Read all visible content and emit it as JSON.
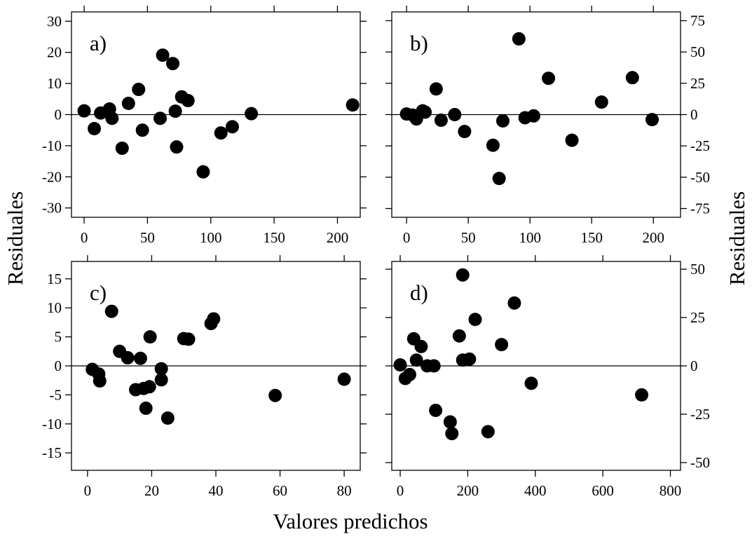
{
  "figure": {
    "xlabel": "Valores predichos",
    "ylabel_left": "Residuales",
    "ylabel_right": "Residuales"
  },
  "chart_data": [
    {
      "type": "scatter",
      "panel_label": "a)",
      "xlim": [
        -10,
        218
      ],
      "ylim": [
        -33,
        33
      ],
      "xticks": [
        0,
        50,
        100,
        150,
        200
      ],
      "yticks": [
        -30,
        -20,
        -10,
        0,
        10,
        20,
        30
      ],
      "y_axis_side": "left",
      "x_axis_side": "bottom",
      "reference_line_y": 0,
      "points": [
        {
          "x": 0,
          "y": 1.2
        },
        {
          "x": 8,
          "y": -4.5
        },
        {
          "x": 13,
          "y": 0.5
        },
        {
          "x": 20,
          "y": 1.8
        },
        {
          "x": 22,
          "y": -1.2
        },
        {
          "x": 30,
          "y": -10.8
        },
        {
          "x": 35,
          "y": 3.6
        },
        {
          "x": 43,
          "y": 8.1
        },
        {
          "x": 46,
          "y": -5
        },
        {
          "x": 60,
          "y": -1.2
        },
        {
          "x": 62,
          "y": 19.1
        },
        {
          "x": 70,
          "y": 16.4
        },
        {
          "x": 72,
          "y": 1.1
        },
        {
          "x": 73,
          "y": -10.4
        },
        {
          "x": 77,
          "y": 5.7
        },
        {
          "x": 82,
          "y": 4.5
        },
        {
          "x": 94,
          "y": -18.4
        },
        {
          "x": 108,
          "y": -5.9
        },
        {
          "x": 117,
          "y": -3.9
        },
        {
          "x": 132,
          "y": 0.3
        },
        {
          "x": 212,
          "y": 3.1
        }
      ]
    },
    {
      "type": "scatter",
      "panel_label": "b)",
      "xlim": [
        -12,
        222
      ],
      "ylim": [
        -82,
        82
      ],
      "xticks": [
        0,
        50,
        100,
        150,
        200
      ],
      "yticks": [
        -75,
        -50,
        -25,
        0,
        25,
        50,
        75
      ],
      "y_axis_side": "right",
      "x_axis_side": "bottom",
      "reference_line_y": 0,
      "points": [
        {
          "x": 0,
          "y": 0.5
        },
        {
          "x": 5,
          "y": -0.4
        },
        {
          "x": 8,
          "y": -3.5
        },
        {
          "x": 13,
          "y": 3
        },
        {
          "x": 15,
          "y": 2
        },
        {
          "x": 24,
          "y": 20.5
        },
        {
          "x": 28,
          "y": -4.5
        },
        {
          "x": 39,
          "y": 0
        },
        {
          "x": 47,
          "y": -13.5
        },
        {
          "x": 70,
          "y": -24.5
        },
        {
          "x": 75,
          "y": -51
        },
        {
          "x": 78,
          "y": -5
        },
        {
          "x": 91,
          "y": 60.5
        },
        {
          "x": 96,
          "y": -2.5
        },
        {
          "x": 103,
          "y": -1
        },
        {
          "x": 115,
          "y": 29
        },
        {
          "x": 134,
          "y": -20.5
        },
        {
          "x": 158,
          "y": 10
        },
        {
          "x": 183,
          "y": 29.5
        },
        {
          "x": 199,
          "y": -4
        }
      ]
    },
    {
      "type": "scatter",
      "panel_label": "c)",
      "xlim": [
        -5,
        85
      ],
      "ylim": [
        -18,
        18
      ],
      "xticks": [
        0,
        20,
        40,
        60,
        80
      ],
      "yticks": [
        -15,
        -10,
        -5,
        0,
        5,
        10,
        15
      ],
      "y_axis_side": "left",
      "x_axis_side": "bottom",
      "reference_line_y": 0,
      "points": [
        {
          "x": 1.5,
          "y": -0.6
        },
        {
          "x": 3.5,
          "y": -1.4
        },
        {
          "x": 3.8,
          "y": -2.6
        },
        {
          "x": 7.5,
          "y": 9.4
        },
        {
          "x": 10,
          "y": 2.5
        },
        {
          "x": 12.5,
          "y": 1.4
        },
        {
          "x": 15,
          "y": -4.1
        },
        {
          "x": 16.5,
          "y": 1.3
        },
        {
          "x": 17.5,
          "y": -3.9
        },
        {
          "x": 18.2,
          "y": -7.3
        },
        {
          "x": 19.3,
          "y": -3.6
        },
        {
          "x": 19.5,
          "y": 5
        },
        {
          "x": 23,
          "y": -0.5
        },
        {
          "x": 23,
          "y": -2.4
        },
        {
          "x": 25,
          "y": -9
        },
        {
          "x": 30,
          "y": 4.7
        },
        {
          "x": 31.5,
          "y": 4.6
        },
        {
          "x": 38.5,
          "y": 7.3
        },
        {
          "x": 39.3,
          "y": 8.1
        },
        {
          "x": 58.5,
          "y": -5.1
        },
        {
          "x": 80,
          "y": -2.3
        }
      ]
    },
    {
      "type": "scatter",
      "panel_label": "d)",
      "xlim": [
        -25,
        830
      ],
      "ylim": [
        -54,
        54
      ],
      "xticks": [
        0,
        200,
        400,
        600,
        800
      ],
      "yticks": [
        -50,
        -25,
        0,
        25,
        50
      ],
      "y_axis_side": "right",
      "x_axis_side": "bottom",
      "reference_line_y": 0,
      "points": [
        {
          "x": 0,
          "y": 0.5
        },
        {
          "x": 15,
          "y": -6.5
        },
        {
          "x": 28,
          "y": -4.5
        },
        {
          "x": 40,
          "y": 14
        },
        {
          "x": 48,
          "y": 3
        },
        {
          "x": 62,
          "y": 10
        },
        {
          "x": 80,
          "y": 0
        },
        {
          "x": 100,
          "y": 0
        },
        {
          "x": 105,
          "y": -23
        },
        {
          "x": 148,
          "y": -29
        },
        {
          "x": 153,
          "y": -35
        },
        {
          "x": 175,
          "y": 15.5
        },
        {
          "x": 185,
          "y": 47
        },
        {
          "x": 185,
          "y": 3
        },
        {
          "x": 205,
          "y": 3.5
        },
        {
          "x": 222,
          "y": 24
        },
        {
          "x": 260,
          "y": -34
        },
        {
          "x": 300,
          "y": 11
        },
        {
          "x": 338,
          "y": 32.5
        },
        {
          "x": 388,
          "y": -9
        },
        {
          "x": 715,
          "y": -15
        }
      ]
    }
  ]
}
